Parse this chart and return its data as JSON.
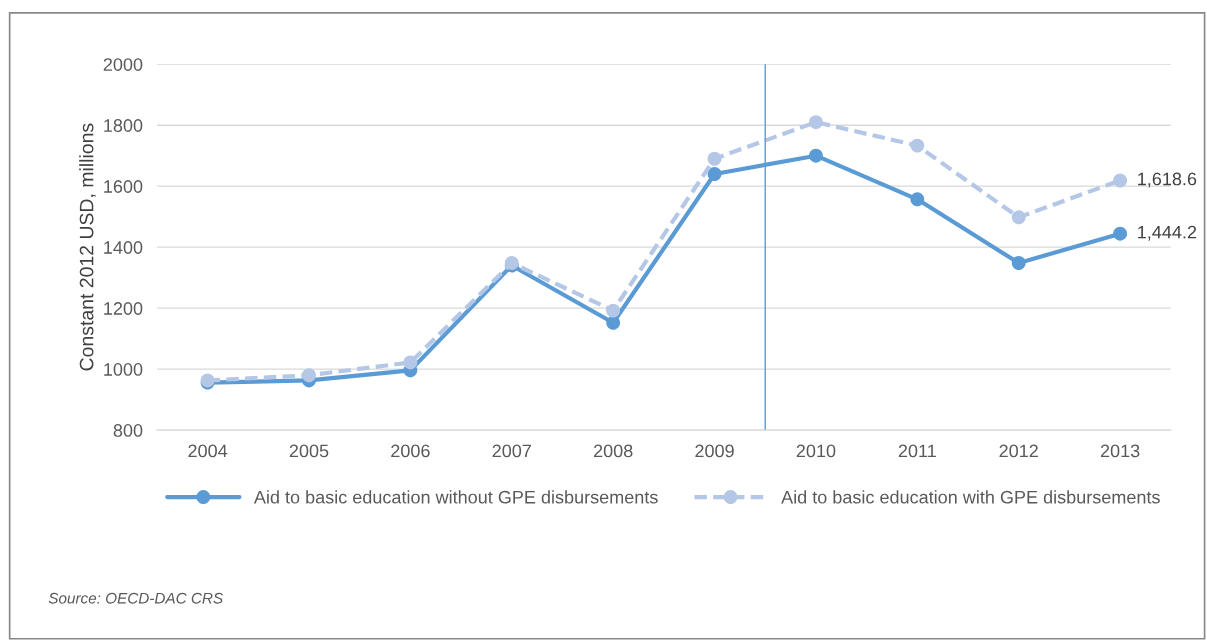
{
  "chart_data": {
    "type": "line",
    "x": [
      2004,
      2005,
      2006,
      2007,
      2008,
      2009,
      2010,
      2011,
      2012,
      2013
    ],
    "xlim": [
      2003.5,
      2013.5
    ],
    "xticks": [
      2004,
      2005,
      2006,
      2007,
      2008,
      2009,
      2010,
      2011,
      2012,
      2013
    ],
    "ylim": [
      800,
      2000
    ],
    "yticks": [
      800,
      1000,
      1200,
      1400,
      1600,
      1800,
      2000
    ],
    "ylabel": "Constant 2012 USD, millions",
    "series": [
      {
        "name": "Aid to basic education without GPE disbursements",
        "color": "#5b9bd5",
        "line_style": "solid",
        "values": [
          956,
          963,
          996,
          1340,
          1152,
          1640,
          1700,
          1557,
          1348,
          1444.2
        ],
        "value_labels": [
          null,
          null,
          null,
          null,
          null,
          null,
          null,
          null,
          null,
          "1,444.2"
        ]
      },
      {
        "name": "Aid to basic education with GPE disbursements",
        "color": "#b4c7e7",
        "line_style": "dashed",
        "values": [
          963,
          980,
          1022,
          1348,
          1192,
          1690,
          1810,
          1733,
          1498,
          1618.6
        ],
        "value_labels": [
          null,
          null,
          null,
          null,
          null,
          null,
          null,
          null,
          null,
          "1,618.6"
        ]
      }
    ],
    "ref_lines": [
      {
        "axis": "x",
        "value": 2009.5,
        "color": "#5b9bd5",
        "line_style": "solid"
      }
    ],
    "marker": "circle",
    "grid": "y",
    "legend": "bottom",
    "annotations": [
      "Source: OECD-DAC CRS"
    ]
  }
}
